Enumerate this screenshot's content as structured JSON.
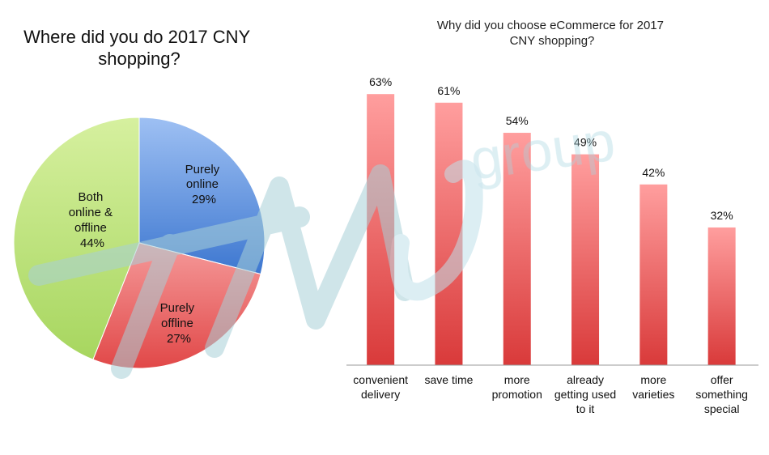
{
  "watermark": {
    "text": "group",
    "color": "#a8d4e0"
  },
  "charts": {
    "pie": {
      "type": "pie",
      "title_lines": [
        "Where did you do 2017 CNY",
        "shopping?"
      ],
      "slices": [
        {
          "name_lines": [
            "Purely",
            "online"
          ],
          "value": 29,
          "label": "29%",
          "color": "#5b8fe0"
        },
        {
          "name_lines": [
            "Purely",
            "offline"
          ],
          "value": 27,
          "label": "27%",
          "color": "#e85858"
        },
        {
          "name_lines": [
            "Both",
            "online &",
            "offline"
          ],
          "value": 44,
          "label": "44%",
          "color": "#b9e07a"
        }
      ]
    },
    "bar": {
      "type": "bar",
      "title_lines": [
        "Why did you choose eCommerce for 2017",
        "CNY shopping?"
      ],
      "ylim": [
        0,
        70
      ],
      "color": "#e85a5a",
      "bars": [
        {
          "category_lines": [
            "convenient",
            "delivery"
          ],
          "value": 63,
          "label": "63%"
        },
        {
          "category_lines": [
            "save time"
          ],
          "value": 61,
          "label": "61%"
        },
        {
          "category_lines": [
            "more",
            "promotion"
          ],
          "value": 54,
          "label": "54%"
        },
        {
          "category_lines": [
            "already",
            "getting used",
            "to it"
          ],
          "value": 49,
          "label": "49%"
        },
        {
          "category_lines": [
            "more",
            "varieties"
          ],
          "value": 42,
          "label": "42%"
        },
        {
          "category_lines": [
            "offer",
            "something",
            "special"
          ],
          "value": 32,
          "label": "32%"
        }
      ]
    }
  }
}
